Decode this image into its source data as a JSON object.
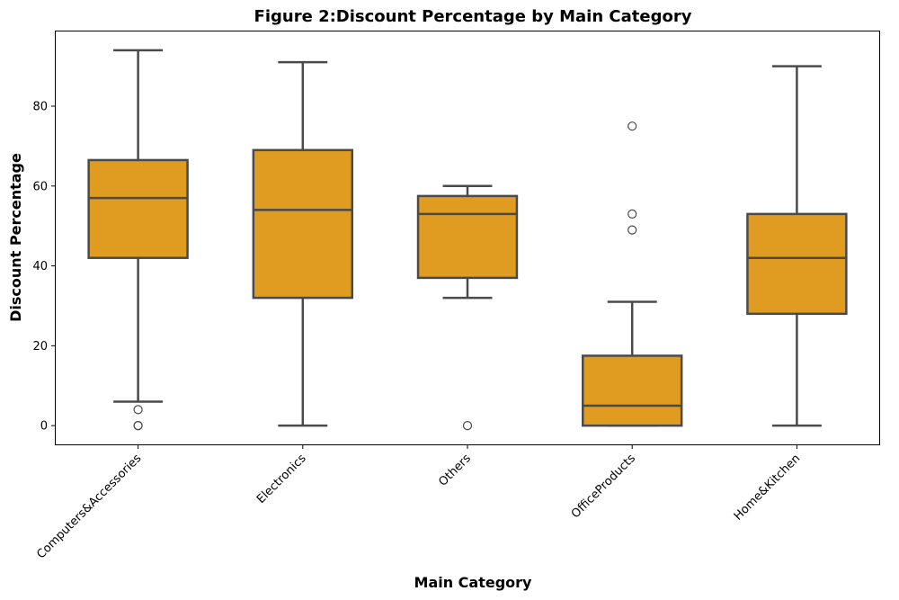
{
  "chart_data": {
    "type": "box",
    "title": "Figure 2:Discount Percentage by Main Category",
    "xlabel": "Main Category",
    "ylabel": "Discount Percentage",
    "ylim": [
      -4.7,
      98.7
    ],
    "yticks": [
      0,
      20,
      40,
      60,
      80
    ],
    "grid": false,
    "box_color": "#E09C20",
    "line_color": "#4a4a4a",
    "categories": [
      "Computers&Accessories",
      "Electronics",
      "Others",
      "OfficeProducts",
      "Home&Kitchen"
    ],
    "boxes": [
      {
        "category": "Computers&Accessories",
        "whisker_low": 6,
        "q1": 42,
        "median": 57,
        "q3": 66.5,
        "whisker_high": 94,
        "fliers": [
          4,
          0,
          0
        ]
      },
      {
        "category": "Electronics",
        "whisker_low": 0,
        "q1": 32,
        "median": 54,
        "q3": 69,
        "whisker_high": 91,
        "fliers": []
      },
      {
        "category": "Others",
        "whisker_low": 32,
        "q1": 37,
        "median": 53,
        "q3": 57.5,
        "whisker_high": 60,
        "fliers": [
          0
        ]
      },
      {
        "category": "OfficeProducts",
        "whisker_low": 0,
        "q1": 0,
        "median": 5,
        "q3": 17.5,
        "whisker_high": 31,
        "fliers": [
          49,
          53,
          75
        ]
      },
      {
        "category": "Home&Kitchen",
        "whisker_low": 0,
        "q1": 28,
        "median": 42,
        "q3": 53,
        "whisker_high": 90,
        "fliers": []
      }
    ]
  }
}
